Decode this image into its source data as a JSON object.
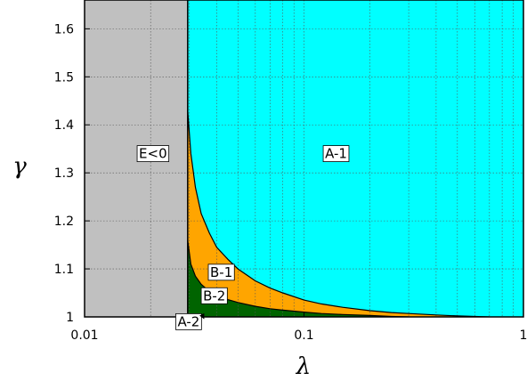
{
  "chart_data": {
    "type": "area",
    "title": "",
    "xlabel": "λ",
    "ylabel": "γ",
    "xscale": "log",
    "xlim": [
      0.01,
      1
    ],
    "ylim": [
      1.0,
      1.66
    ],
    "grid": true,
    "x_ticks": [
      {
        "value": 0.01,
        "label": "0.01"
      },
      {
        "value": 0.1,
        "label": "0.1"
      },
      {
        "value": 1,
        "label": "1"
      }
    ],
    "y_ticks": [
      {
        "value": 1.0,
        "label": "1"
      },
      {
        "value": 1.1,
        "label": "1.1"
      },
      {
        "value": 1.2,
        "label": "1.2"
      },
      {
        "value": 1.3,
        "label": "1.3"
      },
      {
        "value": 1.4,
        "label": "1.4"
      },
      {
        "value": 1.5,
        "label": "1.5"
      },
      {
        "value": 1.6,
        "label": "1.6"
      }
    ],
    "colors": {
      "E<0": "#c0c0c0",
      "A-1": "#00ffff",
      "B-1": "#ffa500",
      "B-2": "#006400",
      "boundary": "#000000"
    },
    "boundary_lambda": 0.0295,
    "curves": {
      "upper": {
        "x": [
          0.0295,
          0.0305,
          0.032,
          0.034,
          0.037,
          0.04,
          0.045,
          0.05,
          0.06,
          0.07,
          0.08,
          0.1,
          0.12,
          0.15,
          0.2,
          0.25,
          0.3,
          0.4,
          0.5,
          0.6,
          0.7
        ],
        "y": [
          1.43,
          1.34,
          1.27,
          1.215,
          1.175,
          1.145,
          1.12,
          1.1,
          1.075,
          1.06,
          1.05,
          1.035,
          1.027,
          1.02,
          1.013,
          1.009,
          1.007,
          1.004,
          1.002,
          1.001,
          1.0
        ]
      },
      "lower": {
        "x": [
          0.0295,
          0.0305,
          0.032,
          0.034,
          0.036,
          0.04,
          0.045,
          0.05,
          0.06,
          0.07,
          0.08,
          0.1,
          0.12,
          0.15,
          0.2,
          0.25,
          0.3
        ],
        "y": [
          1.16,
          1.11,
          1.085,
          1.068,
          1.058,
          1.045,
          1.036,
          1.03,
          1.022,
          1.017,
          1.014,
          1.01,
          1.007,
          1.005,
          1.003,
          1.001,
          1.0
        ]
      }
    },
    "regions": [
      {
        "name": "E<0",
        "label": "E<0",
        "label_x": 0.0205,
        "label_y": 1.34
      },
      {
        "name": "A-1",
        "label": "A-1",
        "label_x": 0.14,
        "label_y": 1.34
      },
      {
        "name": "B-1",
        "label": "B-1",
        "label_x": 0.042,
        "label_y": 1.093
      },
      {
        "name": "B-2",
        "label": "B-2",
        "label_x": 0.039,
        "label_y": 1.044
      },
      {
        "name": "A-2",
        "label": "A-2",
        "label_x": 0.0298,
        "label_y": 0.99,
        "arrow_to_x": 0.035,
        "arrow_to_y": 1.0
      }
    ]
  }
}
